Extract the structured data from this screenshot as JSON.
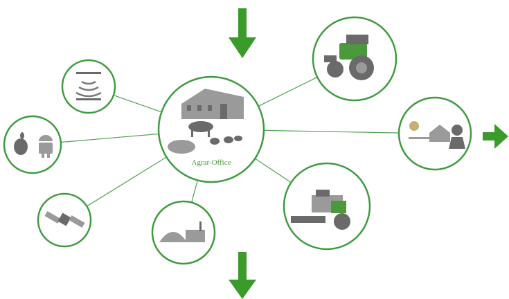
{
  "center": {
    "label": "Agrar-Office"
  }
}
